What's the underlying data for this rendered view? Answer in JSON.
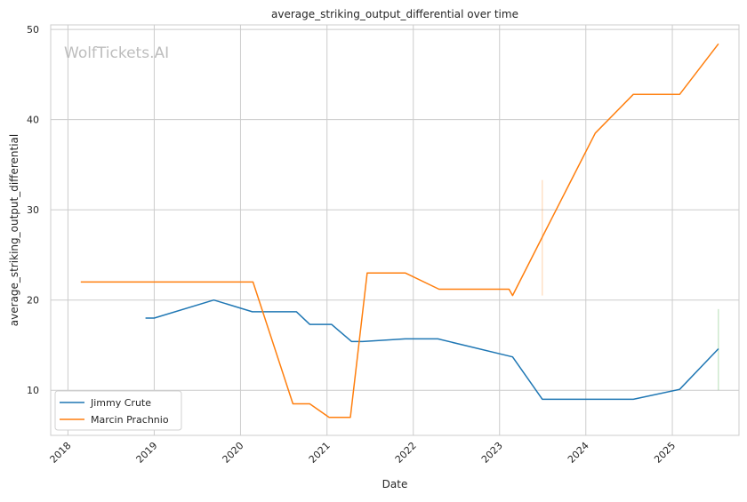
{
  "chart_data": {
    "type": "line",
    "title": "average_striking_output_differential over time",
    "xlabel": "Date",
    "ylabel": "average_striking_output_differential",
    "watermark": "WolfTickets.AI",
    "x_ticks": [
      "2018",
      "2019",
      "2020",
      "2021",
      "2022",
      "2023",
      "2024",
      "2025"
    ],
    "y_ticks": [
      10,
      20,
      30,
      40,
      50
    ],
    "xlim": [
      "2017-10-20",
      "2025-10-10"
    ],
    "ylim": [
      5,
      50.5
    ],
    "grid": true,
    "legend_position": "lower-left",
    "series": [
      {
        "name": "Jimmy Crute",
        "color": "#1f77b4",
        "points": [
          [
            "2018-11-25",
            18.0
          ],
          [
            "2019-01-01",
            18.0
          ],
          [
            "2019-09-10",
            20.0
          ],
          [
            "2020-02-20",
            18.7
          ],
          [
            "2020-08-25",
            18.7
          ],
          [
            "2020-10-20",
            17.3
          ],
          [
            "2021-01-20",
            17.3
          ],
          [
            "2021-04-15",
            15.4
          ],
          [
            "2021-06-01",
            15.4
          ],
          [
            "2021-11-28",
            15.7
          ],
          [
            "2022-04-15",
            15.7
          ],
          [
            "2023-02-25",
            13.7
          ],
          [
            "2023-07-01",
            9.0
          ],
          [
            "2024-07-20",
            9.0
          ],
          [
            "2025-02-01",
            10.1
          ],
          [
            "2025-07-15",
            14.6
          ]
        ]
      },
      {
        "name": "Marcin Prachnio",
        "color": "#ff7f0e",
        "points": [
          [
            "2018-02-24",
            22.0
          ],
          [
            "2020-02-23",
            22.0
          ],
          [
            "2020-08-10",
            8.5
          ],
          [
            "2020-10-20",
            8.5
          ],
          [
            "2021-01-10",
            7.0
          ],
          [
            "2021-04-10",
            7.0
          ],
          [
            "2021-06-20",
            23.0
          ],
          [
            "2021-11-28",
            23.0
          ],
          [
            "2022-04-20",
            21.2
          ],
          [
            "2023-02-10",
            21.2
          ],
          [
            "2023-02-25",
            20.5
          ],
          [
            "2023-07-01",
            27.0
          ],
          [
            "2024-02-10",
            38.5
          ],
          [
            "2024-07-20",
            42.8
          ],
          [
            "2025-02-01",
            42.8
          ],
          [
            "2025-07-15",
            48.4
          ]
        ]
      }
    ],
    "error_bars": [
      {
        "series": "Marcin Prachnio",
        "x": "2023-07-01",
        "low": 20.5,
        "high": 33.3,
        "color": "#ff7f0e"
      },
      {
        "series": "Jimmy Crute",
        "x": "2025-07-15",
        "low": 10.0,
        "high": 19.0,
        "color": "#2ca02c"
      }
    ]
  }
}
